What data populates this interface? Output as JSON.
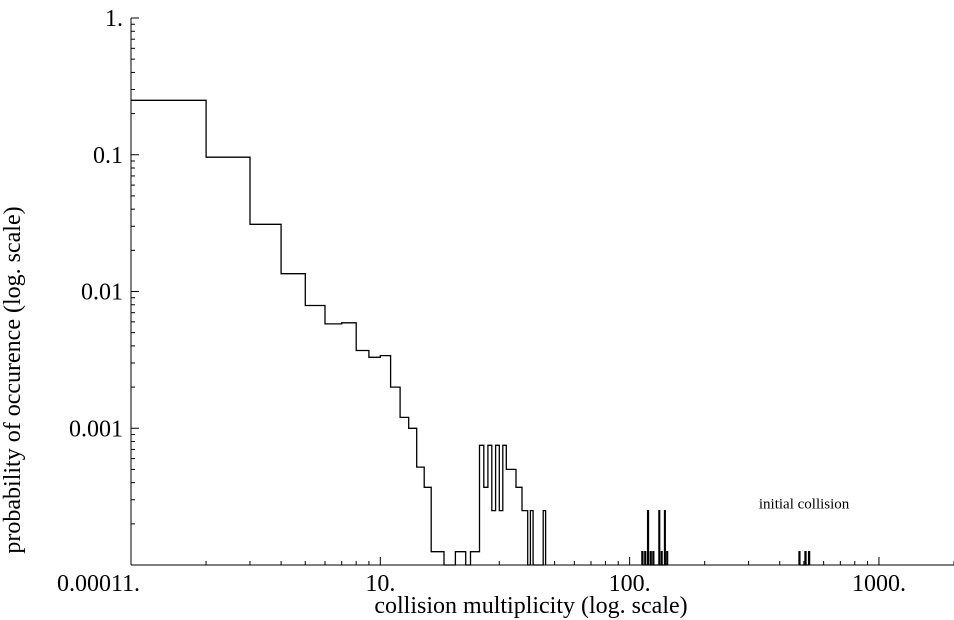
{
  "chart_data": {
    "type": "line",
    "step": true,
    "xlabel": "collision multiplicity (log. scale)",
    "ylabel": "probability of occurence (log. scale)",
    "xscale": "log",
    "yscale": "log",
    "xlim": [
      1,
      2000
    ],
    "ylim": [
      0.0001,
      1
    ],
    "grid": false,
    "xticks": [
      {
        "value": 1,
        "label": "1."
      },
      {
        "value": 10,
        "label": "10."
      },
      {
        "value": 100,
        "label": "100."
      },
      {
        "value": 1000,
        "label": "1000."
      }
    ],
    "yticks": [
      {
        "value": 0.0001,
        "label": "0.0001"
      },
      {
        "value": 0.001,
        "label": "0.001"
      },
      {
        "value": 0.01,
        "label": "0.01"
      },
      {
        "value": 0.1,
        "label": "0.1"
      },
      {
        "value": 1,
        "label": "1."
      }
    ],
    "annotations": [
      {
        "text": "initial collision",
        "x": 330,
        "y": 0.00026
      }
    ],
    "series": [
      {
        "color": "#000000",
        "points": [
          [
            1,
            0.25
          ],
          [
            2,
            0.25
          ],
          [
            2,
            0.096
          ],
          [
            3,
            0.096
          ],
          [
            3,
            0.031
          ],
          [
            4,
            0.031
          ],
          [
            4,
            0.0135
          ],
          [
            5,
            0.0135
          ],
          [
            5,
            0.0079
          ],
          [
            6,
            0.0079
          ],
          [
            6,
            0.0058
          ],
          [
            7,
            0.0058
          ],
          [
            7,
            0.0059
          ],
          [
            8,
            0.0059
          ],
          [
            8,
            0.0037
          ],
          [
            9,
            0.0037
          ],
          [
            9,
            0.0033
          ],
          [
            10,
            0.0033
          ],
          [
            10,
            0.0034
          ],
          [
            11,
            0.0034
          ],
          [
            11,
            0.002
          ],
          [
            12,
            0.002
          ],
          [
            12,
            0.0012
          ],
          [
            13,
            0.0012
          ],
          [
            13,
            0.001
          ],
          [
            14,
            0.001
          ],
          [
            14,
            0.00052
          ],
          [
            15,
            0.00052
          ],
          [
            15,
            0.00037
          ],
          [
            16,
            0.00037
          ],
          [
            16,
            0.000125
          ],
          [
            18,
            0.000125
          ],
          [
            18,
            0.0001
          ],
          [
            20,
            0.0001
          ],
          [
            20,
            0.000125
          ],
          [
            22,
            0.000125
          ],
          [
            22,
            0.0001
          ],
          [
            23,
            0.0001
          ],
          [
            23,
            0.000125
          ],
          [
            25,
            0.000125
          ],
          [
            25,
            0.00075
          ],
          [
            26,
            0.00075
          ],
          [
            26,
            0.00037
          ],
          [
            27,
            0.00037
          ],
          [
            27,
            0.00075
          ],
          [
            28,
            0.00075
          ],
          [
            28,
            0.00025
          ],
          [
            29,
            0.00025
          ],
          [
            29,
            0.00075
          ],
          [
            30,
            0.00075
          ],
          [
            30,
            0.00025
          ],
          [
            31,
            0.00025
          ],
          [
            31,
            0.00075
          ],
          [
            32,
            0.00075
          ],
          [
            32,
            0.0005
          ],
          [
            33,
            0.0005
          ],
          [
            33,
            0.0005
          ],
          [
            35,
            0.0005
          ],
          [
            35,
            0.00037
          ],
          [
            37,
            0.00037
          ],
          [
            37,
            0.00025
          ],
          [
            39,
            0.00025
          ],
          [
            39,
            0.0001
          ],
          [
            40,
            0.0001
          ],
          [
            40,
            0.00025
          ],
          [
            41,
            0.00025
          ],
          [
            41,
            0.0001
          ],
          [
            45,
            0.0001
          ],
          [
            45,
            0.00025
          ],
          [
            46,
            0.00025
          ],
          [
            46,
            0.0001
          ]
        ]
      },
      {
        "color": "#000000",
        "points": [
          [
            112,
            0.0001
          ],
          [
            112,
            0.000125
          ],
          [
            113,
            0.000125
          ],
          [
            113,
            0.0001
          ],
          [
            115,
            0.0001
          ],
          [
            115,
            0.000125
          ],
          [
            116,
            0.000125
          ],
          [
            116,
            0.0001
          ],
          [
            118,
            0.0001
          ],
          [
            118,
            0.00025
          ],
          [
            119,
            0.00025
          ],
          [
            119,
            0.0001
          ],
          [
            121,
            0.0001
          ],
          [
            121,
            0.000125
          ],
          [
            122,
            0.000125
          ],
          [
            122,
            0.0001
          ],
          [
            124,
            0.0001
          ],
          [
            124,
            0.000125
          ],
          [
            125,
            0.000125
          ],
          [
            125,
            0.0001
          ],
          [
            131,
            0.0001
          ],
          [
            131,
            0.00025
          ],
          [
            132,
            0.00025
          ],
          [
            132,
            0.0001
          ],
          [
            134,
            0.0001
          ],
          [
            134,
            0.000125
          ],
          [
            135,
            0.000125
          ],
          [
            135,
            0.0001
          ],
          [
            138,
            0.0001
          ],
          [
            138,
            0.00025
          ],
          [
            139,
            0.00025
          ],
          [
            139,
            0.0001
          ],
          [
            141,
            0.0001
          ],
          [
            141,
            0.000125
          ],
          [
            142,
            0.000125
          ],
          [
            142,
            0.0001
          ]
        ]
      },
      {
        "color": "#000000",
        "points": [
          [
            478,
            0.0001
          ],
          [
            478,
            0.000125
          ],
          [
            482,
            0.000125
          ],
          [
            482,
            0.0001
          ],
          [
            505,
            0.0001
          ],
          [
            505,
            0.000125
          ],
          [
            510,
            0.000125
          ],
          [
            510,
            0.0001
          ],
          [
            522,
            0.0001
          ],
          [
            522,
            0.000125
          ],
          [
            527,
            0.000125
          ],
          [
            527,
            0.0001
          ]
        ]
      }
    ]
  }
}
